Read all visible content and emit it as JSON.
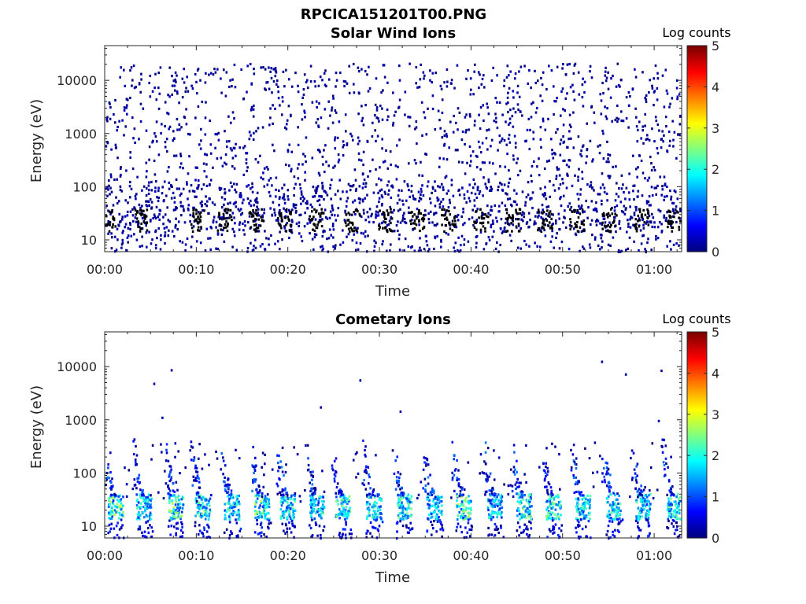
{
  "figure": {
    "title": "RPCICA151201T00.PNG"
  },
  "chart_data": [
    {
      "type": "heatmap",
      "title": "Solar Wind Ions",
      "xlabel": "Time",
      "ylabel": "Energy (eV)",
      "yscale": "log",
      "ylim": [
        6,
        45000
      ],
      "xlim_minutes": [
        0,
        63
      ],
      "x_tick_labels": [
        "00:00",
        "00:10",
        "00:20",
        "00:30",
        "00:40",
        "00:50",
        "01:00"
      ],
      "y_tick_labels": [
        "10",
        "100",
        "1000",
        "10000"
      ],
      "colorbar": {
        "label": "Log counts",
        "range": [
          0,
          5
        ],
        "tick_labels": [
          "0",
          "1",
          "2",
          "3",
          "4",
          "5"
        ],
        "colormap": "jet"
      },
      "grid": false,
      "description_of_data": "Sparse scattered low counts (log ~0) at all energies 20 eV–20 keV; brighter patches (log 1–2) near 15–40 eV roughly every 3–4 minutes",
      "bright_band": {
        "energy_range_eV": [
          15,
          40
        ],
        "peak_log_counts": 2,
        "times_min": [
          0.3,
          4,
          10,
          13,
          16.5,
          19.5,
          23,
          27,
          30.5,
          34,
          37.5,
          41,
          44.5,
          48,
          51.5,
          55,
          58.5,
          62
        ]
      }
    },
    {
      "type": "heatmap",
      "title": "Cometary Ions",
      "xlabel": "Time",
      "ylabel": "Energy (eV)",
      "yscale": "log",
      "ylim": [
        6,
        45000
      ],
      "xlim_minutes": [
        0,
        63
      ],
      "x_tick_labels": [
        "00:00",
        "00:10",
        "00:20",
        "00:30",
        "00:40",
        "00:50",
        "01:00"
      ],
      "y_tick_labels": [
        "10",
        "100",
        "1000",
        "10000"
      ],
      "colorbar": {
        "label": "Log counts",
        "range": [
          0,
          5
        ],
        "tick_labels": [
          "0",
          "1",
          "2",
          "3",
          "4",
          "5"
        ],
        "colormap": "jet"
      },
      "grid": false,
      "description_of_data": "Periodic bursts (~every 3.3 min) of cometary ions at 15–40 eV reaching log counts ~2.5–3, with dispersed tails extending up to ~100–600 eV; a few isolated points at several keV",
      "bursts": [
        {
          "t_min": 0.8,
          "peak_log": 2.8
        },
        {
          "t_min": 3.9,
          "peak_log": 2.3
        },
        {
          "t_min": 7.4,
          "peak_log": 2.9
        },
        {
          "t_min": 10.3,
          "peak_log": 2.7
        },
        {
          "t_min": 13.5,
          "peak_log": 2.4
        },
        {
          "t_min": 16.8,
          "peak_log": 2.9
        },
        {
          "t_min": 19.6,
          "peak_log": 2.5
        },
        {
          "t_min": 22.8,
          "peak_log": 2.4
        },
        {
          "t_min": 25.6,
          "peak_log": 2.6
        },
        {
          "t_min": 29.0,
          "peak_log": 2.5
        },
        {
          "t_min": 32.3,
          "peak_log": 2.5
        },
        {
          "t_min": 35.6,
          "peak_log": 2.2
        },
        {
          "t_min": 38.8,
          "peak_log": 3.0
        },
        {
          "t_min": 42.2,
          "peak_log": 2.3
        },
        {
          "t_min": 45.4,
          "peak_log": 2.6
        },
        {
          "t_min": 48.6,
          "peak_log": 2.7
        },
        {
          "t_min": 51.8,
          "peak_log": 2.5
        },
        {
          "t_min": 55.2,
          "peak_log": 2.4
        },
        {
          "t_min": 58.4,
          "peak_log": 2.3
        },
        {
          "t_min": 61.8,
          "peak_log": 2.5
        }
      ],
      "isolated_high_energy_points": [
        {
          "t_min": 5.3,
          "energy_eV": 5000
        },
        {
          "t_min": 7.2,
          "energy_eV": 9000
        },
        {
          "t_min": 6.2,
          "energy_eV": 1150
        },
        {
          "t_min": 27.8,
          "energy_eV": 5800
        },
        {
          "t_min": 23.5,
          "energy_eV": 1800
        },
        {
          "t_min": 32.2,
          "energy_eV": 1500
        },
        {
          "t_min": 54.2,
          "energy_eV": 13000
        },
        {
          "t_min": 56.8,
          "energy_eV": 7500
        },
        {
          "t_min": 60.7,
          "energy_eV": 8800
        },
        {
          "t_min": 60.4,
          "energy_eV": 1000
        }
      ]
    }
  ]
}
